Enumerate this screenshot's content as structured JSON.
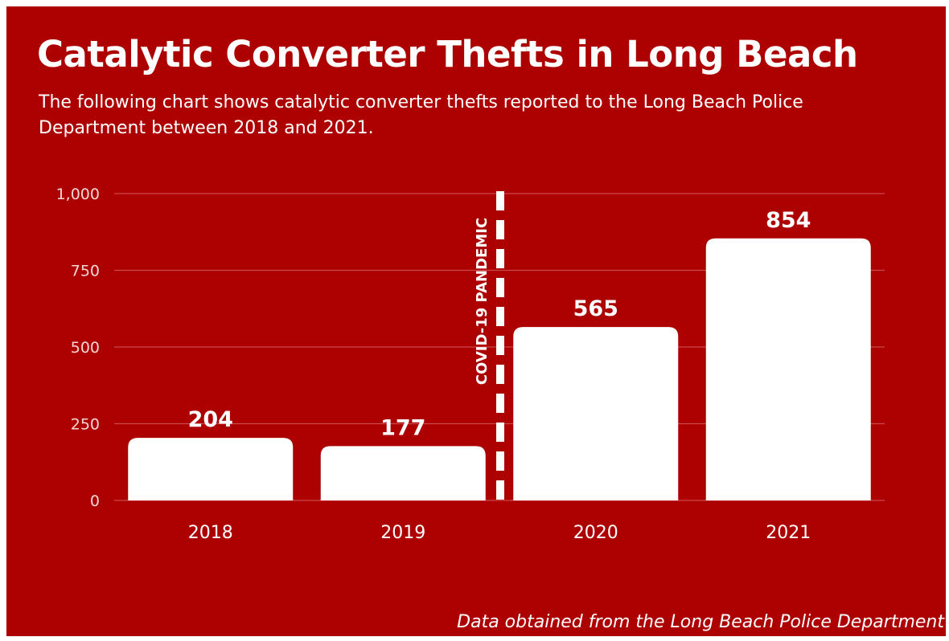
{
  "title": "Catalytic Converter Thefts in Long Beach",
  "subtitle": "The following chart shows catalytic converter thefts reported to the Long Beach Police Department between 2018 and 2021.",
  "source_note": "Data obtained from the Long Beach Police Department",
  "colors": {
    "background": "#ad0000",
    "bar": "#ffffff",
    "text": "#ffffff",
    "gridline": "#c94a4a",
    "axis_text": "#f3d6d6"
  },
  "chart_data": {
    "type": "bar",
    "categories": [
      "2018",
      "2019",
      "2020",
      "2021"
    ],
    "values": [
      204,
      177,
      565,
      854
    ],
    "ylim": [
      0,
      1000
    ],
    "yticks": [
      0,
      250,
      500,
      750,
      1000
    ],
    "ytick_labels": [
      "0",
      "250",
      "500",
      "750",
      "1,000"
    ],
    "grid": true,
    "legend": "none",
    "annotations": [
      {
        "text": "COVID-19 PANDEMIC",
        "style": "dashed vertical line",
        "between_categories": [
          "2019",
          "2020"
        ]
      }
    ]
  }
}
